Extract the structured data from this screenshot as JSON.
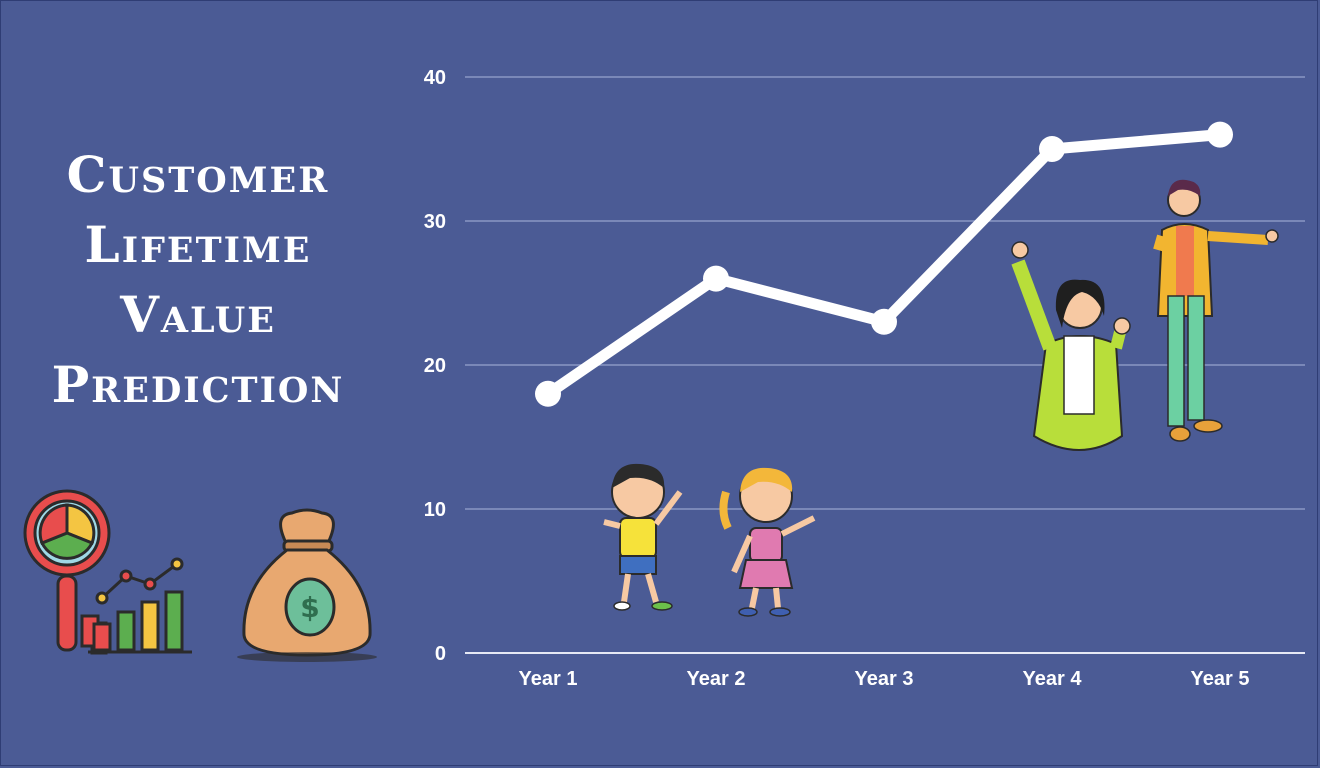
{
  "title_lines": [
    "Customer",
    "Lifetime",
    "Value",
    "Prediction"
  ],
  "colors": {
    "background": "#4b5b95",
    "line": "#ffffff",
    "grid": "#8a97c4"
  },
  "chart_data": {
    "type": "line",
    "categories": [
      "Year 1",
      "Year 2",
      "Year 3",
      "Year 4",
      "Year 5"
    ],
    "series": [
      {
        "values": [
          18,
          26,
          23,
          35,
          36
        ]
      }
    ],
    "y_ticks": [
      "0",
      "10",
      "20",
      "30",
      "40"
    ],
    "ylim": [
      0,
      40
    ],
    "grid": true,
    "legend": "none"
  },
  "illustrations": [
    "analytics-magnifier-icon",
    "money-bag-icon",
    "boy-figure",
    "girl-figure",
    "woman-figure",
    "man-figure"
  ]
}
